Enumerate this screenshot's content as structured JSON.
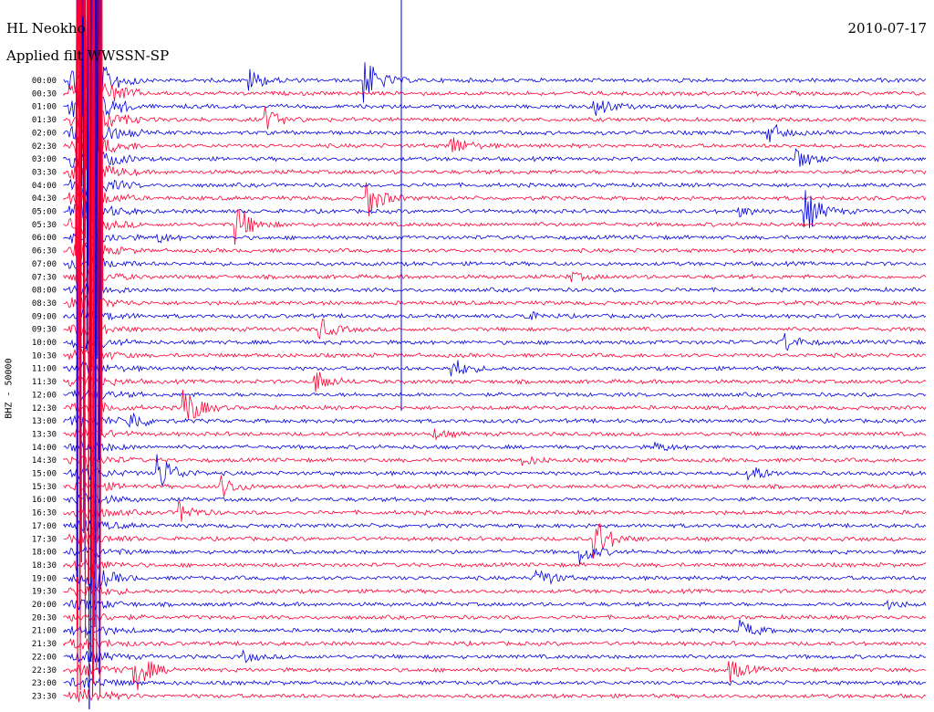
{
  "header": {
    "station": "HL Neokho",
    "filter": "Applied filt WWSSN-SP",
    "date": "2010-07-17"
  },
  "chart_data": {
    "type": "line",
    "title": "HL Neokho",
    "subtitle": "Applied filt WWSSN-SP",
    "date": "2010-07-17",
    "ylabel": "BHZ - 50000",
    "row_interval_minutes": 30,
    "row_labels": [
      "00:00",
      "00:30",
      "01:00",
      "01:30",
      "02:00",
      "02:30",
      "03:00",
      "03:30",
      "04:00",
      "04:30",
      "05:00",
      "05:30",
      "06:00",
      "06:30",
      "07:00",
      "07:30",
      "08:00",
      "08:30",
      "09:00",
      "09:30",
      "10:00",
      "10:30",
      "11:00",
      "11:30",
      "12:00",
      "12:30",
      "13:00",
      "13:30",
      "14:00",
      "14:30",
      "15:00",
      "15:30",
      "16:00",
      "16:30",
      "17:00",
      "17:30",
      "18:00",
      "18:30",
      "19:00",
      "19:30",
      "20:00",
      "20:30",
      "21:00",
      "21:30",
      "22:00",
      "22:30",
      "23:00",
      "23:30"
    ],
    "colors": {
      "even_rows": "#0000e0",
      "odd_rows": "#ff0033"
    },
    "grid": false,
    "legend": "none",
    "major_event": {
      "start_row": "00:00",
      "start_minute_in_row": 0.5,
      "end_row": "23:30"
    },
    "events": [
      {
        "row": "00:00",
        "minute": 6.5,
        "amplitude": "medium"
      },
      {
        "row": "00:00",
        "minute": 10.5,
        "amplitude": "large"
      },
      {
        "row": "01:00",
        "minute": 18.5,
        "amplitude": "medium"
      },
      {
        "row": "01:30",
        "minute": 7.0,
        "amplitude": "medium"
      },
      {
        "row": "02:00",
        "minute": 24.5,
        "amplitude": "medium"
      },
      {
        "row": "02:30",
        "minute": 13.5,
        "amplitude": "medium"
      },
      {
        "row": "03:00",
        "minute": 25.5,
        "amplitude": "medium"
      },
      {
        "row": "04:30",
        "minute": 10.5,
        "amplitude": "large"
      },
      {
        "row": "05:00",
        "minute": 25.8,
        "amplitude": "large"
      },
      {
        "row": "05:00",
        "minute": 23.5,
        "amplitude": "small"
      },
      {
        "row": "05:30",
        "minute": 6.0,
        "amplitude": "large"
      },
      {
        "row": "06:00",
        "minute": 3.3,
        "amplitude": "small"
      },
      {
        "row": "07:30",
        "minute": 17.6,
        "amplitude": "small"
      },
      {
        "row": "09:00",
        "minute": 16.0,
        "amplitude": "small"
      },
      {
        "row": "09:30",
        "minute": 8.9,
        "amplitude": "medium"
      },
      {
        "row": "10:00",
        "minute": 25.0,
        "amplitude": "medium"
      },
      {
        "row": "11:00",
        "minute": 13.5,
        "amplitude": "medium"
      },
      {
        "row": "11:30",
        "minute": 8.8,
        "amplitude": "medium"
      },
      {
        "row": "12:30",
        "minute": 4.2,
        "amplitude": "large"
      },
      {
        "row": "13:00",
        "minute": 2.3,
        "amplitude": "medium"
      },
      {
        "row": "13:30",
        "minute": 12.9,
        "amplitude": "small"
      },
      {
        "row": "14:00",
        "minute": 20.6,
        "amplitude": "small"
      },
      {
        "row": "14:30",
        "minute": 16.0,
        "amplitude": "small"
      },
      {
        "row": "15:00",
        "minute": 3.3,
        "amplitude": "large"
      },
      {
        "row": "15:00",
        "minute": 23.8,
        "amplitude": "medium"
      },
      {
        "row": "15:30",
        "minute": 5.5,
        "amplitude": "medium"
      },
      {
        "row": "16:30",
        "minute": 4.0,
        "amplitude": "medium"
      },
      {
        "row": "17:30",
        "minute": 18.5,
        "amplitude": "large"
      },
      {
        "row": "18:00",
        "minute": 18.0,
        "amplitude": "medium"
      },
      {
        "row": "19:00",
        "minute": 1.0,
        "amplitude": "medium"
      },
      {
        "row": "19:00",
        "minute": 16.5,
        "amplitude": "medium"
      },
      {
        "row": "20:00",
        "minute": 28.7,
        "amplitude": "small"
      },
      {
        "row": "21:00",
        "minute": 23.5,
        "amplitude": "medium"
      },
      {
        "row": "22:00",
        "minute": 6.3,
        "amplitude": "small"
      },
      {
        "row": "22:30",
        "minute": 2.5,
        "amplitude": "large"
      },
      {
        "row": "22:30",
        "minute": 23.2,
        "amplitude": "medium"
      }
    ]
  }
}
